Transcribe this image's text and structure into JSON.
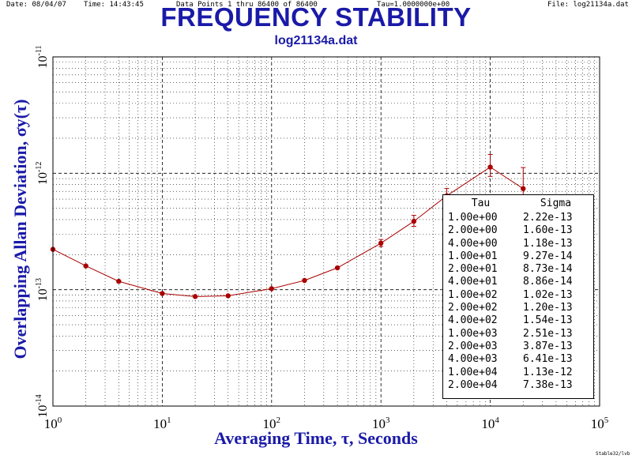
{
  "header": {
    "date": "Date: 08/04/07",
    "time": "Time: 14:43:45",
    "points": "Data Points 1 thru 86400 of 86400",
    "tau": "Tau=1.0000000e+00",
    "file": "File: log21134a.dat"
  },
  "footnote": "Stable32/lvb",
  "colors": {
    "title": "#1a1aa8",
    "series": "#aa0000",
    "grid": "#000000"
  },
  "chart_data": {
    "type": "line",
    "title": "FREQUENCY STABILITY",
    "subtitle": "log21134a.dat",
    "xlabel": "Averaging Time, τ, Seconds",
    "ylabel": "Overlapping Allan Deviation, σy(τ)",
    "xscale": "log",
    "yscale": "log",
    "xlim": [
      1,
      100000
    ],
    "ylim": [
      1e-14,
      1e-11
    ],
    "grid": true,
    "x_ticks": [
      {
        "value": 1,
        "base": "10",
        "exp": "0"
      },
      {
        "value": 10,
        "base": "10",
        "exp": "1"
      },
      {
        "value": 100,
        "base": "10",
        "exp": "2"
      },
      {
        "value": 1000,
        "base": "10",
        "exp": "3"
      },
      {
        "value": 10000,
        "base": "10",
        "exp": "4"
      },
      {
        "value": 100000,
        "base": "10",
        "exp": "5"
      }
    ],
    "y_ticks": [
      {
        "value": 1e-14,
        "base": "10",
        "exp": "-14"
      },
      {
        "value": 1e-13,
        "base": "10",
        "exp": "-13"
      },
      {
        "value": 1e-12,
        "base": "10",
        "exp": "-12"
      },
      {
        "value": 1e-11,
        "base": "10",
        "exp": "-11"
      }
    ],
    "x": [
      1,
      2,
      4,
      10,
      20,
      40,
      100,
      200,
      400,
      1000,
      2000,
      4000,
      10000,
      20000
    ],
    "y": [
      2.22e-13,
      1.6e-13,
      1.18e-13,
      9.27e-14,
      8.73e-14,
      8.86e-14,
      1.02e-13,
      1.2e-13,
      1.54e-13,
      2.51e-13,
      3.87e-13,
      6.41e-13,
      1.13e-12,
      7.38e-13
    ],
    "error_bars": [
      {
        "x": 1000,
        "lo": 2.35e-13,
        "hi": 2.7e-13
      },
      {
        "x": 2000,
        "lo": 3.5e-13,
        "hi": 4.35e-13
      },
      {
        "x": 4000,
        "lo": 5.7e-13,
        "hi": 7.4e-13
      },
      {
        "x": 10000,
        "lo": 9.4e-13,
        "hi": 1.45e-12
      },
      {
        "x": 20000,
        "lo": 5.5e-13,
        "hi": 1.12e-12
      }
    ],
    "table": {
      "headers": [
        "Tau",
        "Sigma"
      ],
      "rows": [
        [
          "1.00e+00",
          "2.22e-13"
        ],
        [
          "2.00e+00",
          "1.60e-13"
        ],
        [
          "4.00e+00",
          "1.18e-13"
        ],
        [
          "1.00e+01",
          "9.27e-14"
        ],
        [
          "2.00e+01",
          "8.73e-14"
        ],
        [
          "4.00e+01",
          "8.86e-14"
        ],
        [
          "1.00e+02",
          "1.02e-13"
        ],
        [
          "2.00e+02",
          "1.20e-13"
        ],
        [
          "4.00e+02",
          "1.54e-13"
        ],
        [
          "1.00e+03",
          "2.51e-13"
        ],
        [
          "2.00e+03",
          "3.87e-13"
        ],
        [
          "4.00e+03",
          "6.41e-13"
        ],
        [
          "1.00e+04",
          "1.13e-12"
        ],
        [
          "2.00e+04",
          "7.38e-13"
        ]
      ]
    }
  }
}
